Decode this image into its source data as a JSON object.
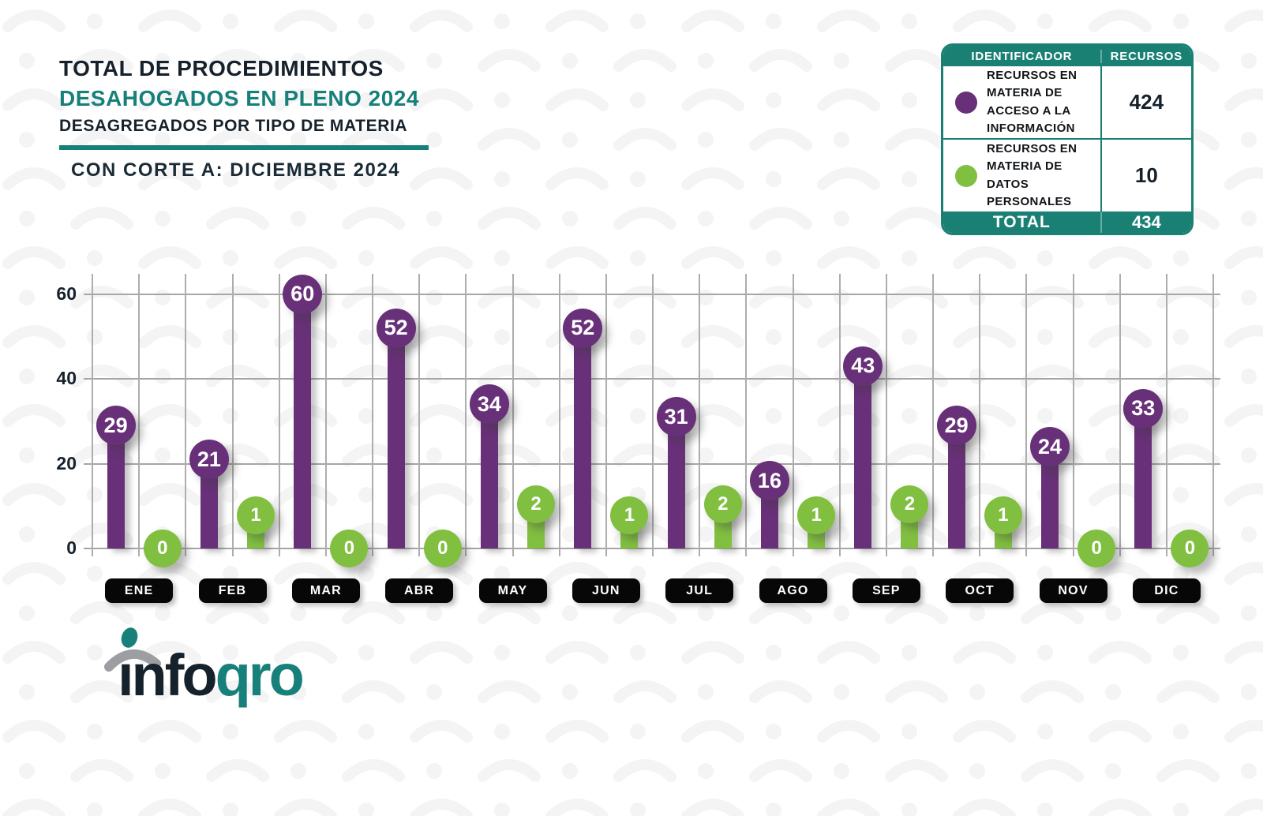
{
  "header": {
    "title_line1": "TOTAL DE PROCEDIMIENTOS",
    "title_line2": "DESAHOGADOS EN PLENO 2024",
    "title_line3": "DESAGREGADOS POR TIPO DE MATERIA",
    "subtitle": "CON CORTE A: DICIEMBRE 2024"
  },
  "legend_table": {
    "col_identificador": "IDENTIFICADOR",
    "col_recursos": "RECURSOS",
    "rows": [
      {
        "label": "RECURSOS EN MATERIA DE ACCESO A LA INFORMACIÓN",
        "value": "424",
        "color": "#683078"
      },
      {
        "label": "RECURSOS EN MATERIA DE DATOS PERSONALES",
        "value": "10",
        "color": "#81BF40"
      }
    ],
    "total_label": "TOTAL",
    "total_value": "434"
  },
  "chart_data": {
    "type": "bar",
    "variant": "lollipop",
    "title": "Total de procedimientos desahogados en Pleno 2024 desagregados por tipo de materia",
    "categories": [
      "ENE",
      "FEB",
      "MAR",
      "ABR",
      "MAY",
      "JUN",
      "JUL",
      "AGO",
      "SEP",
      "OCT",
      "NOV",
      "DIC"
    ],
    "series": [
      {
        "name": "RECURSOS EN MATERIA DE ACCESO A LA INFORMACIÓN",
        "color": "#683078",
        "values": [
          29,
          21,
          60,
          52,
          34,
          52,
          31,
          16,
          43,
          29,
          24,
          33
        ],
        "total": 424
      },
      {
        "name": "RECURSOS EN MATERIA DE DATOS PERSONALES",
        "color": "#81BF40",
        "values": [
          0,
          1,
          0,
          0,
          2,
          1,
          2,
          1,
          2,
          1,
          0,
          0
        ],
        "total": 10
      }
    ],
    "total": 434,
    "xlabel": "",
    "ylabel": "",
    "ylim": [
      0,
      60
    ],
    "yticks": [
      0,
      20,
      40,
      60
    ],
    "grid": true,
    "legend_position": "top-right-table"
  },
  "logo": {
    "text_dark": "ınfo",
    "text_teal": "qro"
  },
  "colors": {
    "purple": "#683078",
    "green": "#81BF40",
    "teal": "#17807A",
    "navy": "#16212B",
    "grid": "#A6A6A6",
    "pill_black": "#070707",
    "pattern": "#F4F4F5"
  }
}
